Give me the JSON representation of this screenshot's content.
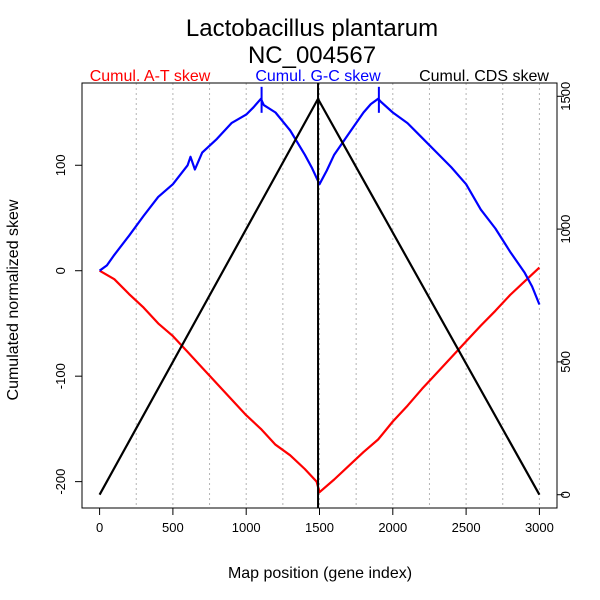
{
  "chart_data": {
    "type": "line",
    "title_line1": "Lactobacillus plantarum",
    "title_line2": "NC_004567",
    "xlabel": "Map position (gene index)",
    "ylabel": "Cumulated normalized skew",
    "xlim": [
      -120,
      3120
    ],
    "ylim": [
      -225,
      178
    ],
    "ylim_right": [
      -50,
      1550
    ],
    "x_ticks": [
      0,
      500,
      1000,
      1500,
      2000,
      2500,
      3000
    ],
    "x_tick_labels": [
      "0",
      "500",
      "1000",
      "1500",
      "2000",
      "2500",
      "3000"
    ],
    "y_ticks": [
      -200,
      -100,
      0,
      100
    ],
    "y_tick_labels": [
      "-200",
      "-100",
      "0",
      "100"
    ],
    "y_ticks_right": [
      0,
      500,
      1000,
      1500
    ],
    "y_tick_labels_right": [
      "0",
      "500",
      "1000",
      "1500"
    ],
    "grid_x": [
      250,
      500,
      750,
      1000,
      1250,
      1500,
      1750,
      2000,
      2250,
      2500,
      2750,
      3000
    ],
    "grid": true,
    "legend": [
      {
        "name": "Cumul. A-T skew",
        "color": "#ff0000"
      },
      {
        "name": "Cumul. G-C skew",
        "color": "#0000ff"
      },
      {
        "name": "Cumul. CDS skew",
        "color": "#000000"
      }
    ],
    "series": [
      {
        "name": "Cumul. A-T skew",
        "color": "#ff0000",
        "axis": "left",
        "x": [
          0,
          100,
          200,
          300,
          400,
          500,
          600,
          700,
          800,
          900,
          1000,
          1100,
          1200,
          1300,
          1400,
          1480,
          1500,
          1600,
          1700,
          1800,
          1900,
          2000,
          2100,
          2200,
          2300,
          2400,
          2500,
          2600,
          2700,
          2800,
          2900,
          3000
        ],
        "values": [
          0,
          -8,
          -22,
          -35,
          -50,
          -62,
          -77,
          -92,
          -107,
          -122,
          -137,
          -150,
          -165,
          -175,
          -188,
          -200,
          -210,
          -198,
          -185,
          -172,
          -160,
          -143,
          -128,
          -112,
          -97,
          -82,
          -67,
          -52,
          -38,
          -23,
          -10,
          3
        ]
      },
      {
        "name": "Cumul. G-C skew",
        "color": "#0000ff",
        "axis": "left",
        "x": [
          0,
          50,
          100,
          200,
          300,
          400,
          500,
          600,
          620,
          650,
          700,
          800,
          900,
          1000,
          1050,
          1100,
          1120,
          1200,
          1300,
          1400,
          1450,
          1500,
          1550,
          1600,
          1700,
          1800,
          1850,
          1900,
          1920,
          2000,
          2100,
          2200,
          2300,
          2400,
          2500,
          2600,
          2700,
          2800,
          2900,
          2950,
          3000
        ],
        "values": [
          0,
          5,
          15,
          33,
          52,
          70,
          82,
          100,
          108,
          96,
          112,
          125,
          140,
          148,
          155,
          163,
          157,
          150,
          133,
          110,
          97,
          82,
          95,
          110,
          130,
          150,
          158,
          163,
          160,
          150,
          140,
          126,
          112,
          98,
          82,
          58,
          40,
          18,
          -2,
          -15,
          -32
        ]
      },
      {
        "name": "Cumul. CDS skew",
        "color": "#000000",
        "axis": "right",
        "x": [
          0,
          1490,
          3000
        ],
        "values": [
          0,
          1490,
          0
        ]
      }
    ],
    "annotations": [
      {
        "type": "tick",
        "x": 1105,
        "color": "#0000ff"
      },
      {
        "type": "tick",
        "x": 1905,
        "color": "#0000ff"
      },
      {
        "type": "vline",
        "x": 1490,
        "color": "#000000"
      }
    ]
  }
}
